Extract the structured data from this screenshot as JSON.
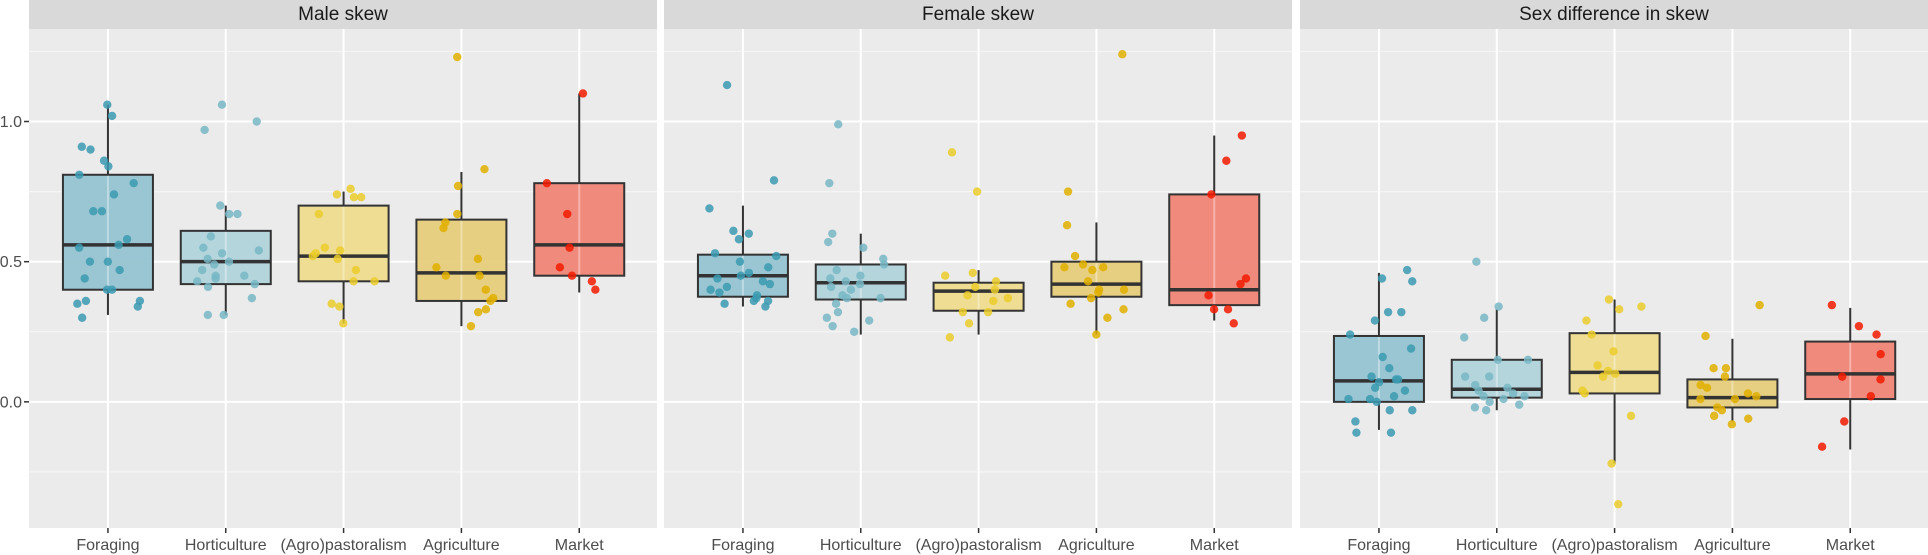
{
  "chart_data": {
    "type": "box",
    "title": "",
    "xlabel": "",
    "ylabel": "",
    "ylim": [
      -0.45,
      1.33
    ],
    "yticks": [
      0.0,
      0.5,
      1.0
    ],
    "ytick_labels": [
      "0.0",
      "0.5",
      "1.0"
    ],
    "minor_gridlines": [
      -0.25,
      0.25,
      0.75,
      1.25
    ],
    "grid": true,
    "legend": "none",
    "categories": [
      "Foraging",
      "Horticulture",
      "(Agro)pastoralism",
      "Agriculture",
      "Market"
    ],
    "category_colors": {
      "point": [
        "#3B9AB2",
        "#78B7C5",
        "#EBCC2A",
        "#E1AF00",
        "#F21A00"
      ],
      "box": [
        "#92C1CF",
        "#B0D3DB",
        "#EEDB8A",
        "#E6CC77",
        "#F08173"
      ]
    },
    "panels": [
      {
        "title": "Male skew",
        "boxes": [
          {
            "category": "Foraging",
            "whisker_low": 0.31,
            "q1": 0.4,
            "median": 0.56,
            "q3": 0.81,
            "whisker_high": 1.06,
            "points": [
              1.06,
              1.02,
              0.91,
              0.9,
              0.86,
              0.84,
              0.81,
              0.78,
              0.74,
              0.68,
              0.68,
              0.58,
              0.56,
              0.55,
              0.5,
              0.5,
              0.47,
              0.44,
              0.4,
              0.4,
              0.36,
              0.35,
              0.34,
              0.36,
              0.3
            ]
          },
          {
            "category": "Horticulture",
            "whisker_low": 0.31,
            "q1": 0.42,
            "median": 0.5,
            "q3": 0.61,
            "whisker_high": 0.7,
            "points": [
              1.06,
              1.0,
              0.97,
              0.7,
              0.67,
              0.67,
              0.59,
              0.55,
              0.54,
              0.53,
              0.51,
              0.5,
              0.49,
              0.47,
              0.45,
              0.45,
              0.44,
              0.43,
              0.42,
              0.41,
              0.37,
              0.31,
              0.31
            ]
          },
          {
            "category": "(Agro)pastoralism",
            "whisker_low": 0.28,
            "q1": 0.43,
            "median": 0.52,
            "q3": 0.7,
            "whisker_high": 0.75,
            "points": [
              0.76,
              0.74,
              0.73,
              0.73,
              0.67,
              0.55,
              0.54,
              0.53,
              0.52,
              0.51,
              0.47,
              0.43,
              0.43,
              0.35,
              0.34,
              0.28
            ]
          },
          {
            "category": "Agriculture",
            "whisker_low": 0.27,
            "q1": 0.36,
            "median": 0.46,
            "q3": 0.65,
            "whisker_high": 0.82,
            "points": [
              1.23,
              0.83,
              0.77,
              0.67,
              0.64,
              0.62,
              0.51,
              0.48,
              0.45,
              0.45,
              0.4,
              0.37,
              0.36,
              0.33,
              0.32,
              0.27
            ]
          },
          {
            "category": "Market",
            "whisker_low": 0.39,
            "q1": 0.45,
            "median": 0.56,
            "q3": 0.78,
            "whisker_high": 1.1,
            "points": [
              1.1,
              0.78,
              0.67,
              0.55,
              0.48,
              0.45,
              0.43,
              0.4
            ]
          }
        ]
      },
      {
        "title": "Female skew",
        "boxes": [
          {
            "category": "Foraging",
            "whisker_low": 0.34,
            "q1": 0.375,
            "median": 0.45,
            "q3": 0.525,
            "whisker_high": 0.7,
            "points": [
              1.13,
              0.79,
              0.69,
              0.61,
              0.6,
              0.58,
              0.53,
              0.52,
              0.5,
              0.48,
              0.46,
              0.45,
              0.44,
              0.43,
              0.42,
              0.41,
              0.4,
              0.39,
              0.38,
              0.37,
              0.36,
              0.36,
              0.35,
              0.34
            ]
          },
          {
            "category": "Horticulture",
            "whisker_low": 0.24,
            "q1": 0.365,
            "median": 0.425,
            "q3": 0.49,
            "whisker_high": 0.6,
            "points": [
              0.99,
              0.78,
              0.6,
              0.57,
              0.55,
              0.51,
              0.49,
              0.47,
              0.45,
              0.44,
              0.43,
              0.42,
              0.41,
              0.4,
              0.38,
              0.37,
              0.37,
              0.35,
              0.32,
              0.3,
              0.29,
              0.27,
              0.25
            ]
          },
          {
            "category": "(Agro)pastoralism",
            "whisker_low": 0.24,
            "q1": 0.325,
            "median": 0.395,
            "q3": 0.425,
            "whisker_high": 0.47,
            "points": [
              0.89,
              0.75,
              0.46,
              0.45,
              0.43,
              0.41,
              0.4,
              0.38,
              0.37,
              0.36,
              0.32,
              0.32,
              0.28,
              0.23
            ]
          },
          {
            "category": "Agriculture",
            "whisker_low": 0.24,
            "q1": 0.375,
            "median": 0.42,
            "q3": 0.5,
            "whisker_high": 0.64,
            "points": [
              1.24,
              0.75,
              0.63,
              0.52,
              0.49,
              0.48,
              0.48,
              0.47,
              0.43,
              0.4,
              0.4,
              0.39,
              0.37,
              0.35,
              0.33,
              0.3,
              0.24
            ]
          },
          {
            "category": "Market",
            "whisker_low": 0.29,
            "q1": 0.345,
            "median": 0.4,
            "q3": 0.74,
            "whisker_high": 0.95,
            "points": [
              0.95,
              0.86,
              0.74,
              0.44,
              0.42,
              0.38,
              0.33,
              0.33,
              0.28
            ]
          }
        ]
      },
      {
        "title": "Sex difference in skew",
        "boxes": [
          {
            "category": "Foraging",
            "whisker_low": -0.1,
            "q1": 0.0,
            "median": 0.075,
            "q3": 0.235,
            "whisker_high": 0.46,
            "points": [
              0.47,
              0.44,
              0.43,
              0.32,
              0.32,
              0.29,
              0.24,
              0.19,
              0.16,
              0.12,
              0.09,
              0.08,
              0.08,
              0.07,
              0.05,
              0.04,
              0.02,
              0.01,
              0.01,
              0.0,
              -0.03,
              -0.03,
              -0.07,
              -0.11,
              -0.11
            ]
          },
          {
            "category": "Horticulture",
            "whisker_low": -0.03,
            "q1": 0.015,
            "median": 0.045,
            "q3": 0.15,
            "whisker_high": 0.33,
            "points": [
              0.5,
              0.34,
              0.3,
              0.23,
              0.15,
              0.15,
              0.09,
              0.09,
              0.06,
              0.05,
              0.04,
              0.03,
              0.02,
              0.02,
              0.01,
              0.0,
              -0.01,
              -0.02,
              -0.03
            ]
          },
          {
            "category": "(Agro)pastoralism",
            "whisker_low": -0.22,
            "q1": 0.03,
            "median": 0.105,
            "q3": 0.245,
            "whisker_high": 0.365,
            "points": [
              0.365,
              0.34,
              0.33,
              0.29,
              0.24,
              0.18,
              0.13,
              0.11,
              0.1,
              0.09,
              0.04,
              0.03,
              -0.05,
              -0.22,
              -0.365
            ]
          },
          {
            "category": "Agriculture",
            "whisker_low": -0.07,
            "q1": -0.02,
            "median": 0.015,
            "q3": 0.08,
            "whisker_high": 0.225,
            "points": [
              0.345,
              0.235,
              0.12,
              0.12,
              0.09,
              0.06,
              0.05,
              0.03,
              0.02,
              0.01,
              0.01,
              -0.02,
              -0.03,
              -0.05,
              -0.06,
              -0.08
            ]
          },
          {
            "category": "Market",
            "whisker_low": -0.17,
            "q1": 0.01,
            "median": 0.1,
            "q3": 0.215,
            "whisker_high": 0.335,
            "points": [
              0.345,
              0.27,
              0.24,
              0.17,
              0.09,
              0.08,
              0.02,
              -0.07,
              -0.16
            ]
          }
        ]
      }
    ]
  }
}
